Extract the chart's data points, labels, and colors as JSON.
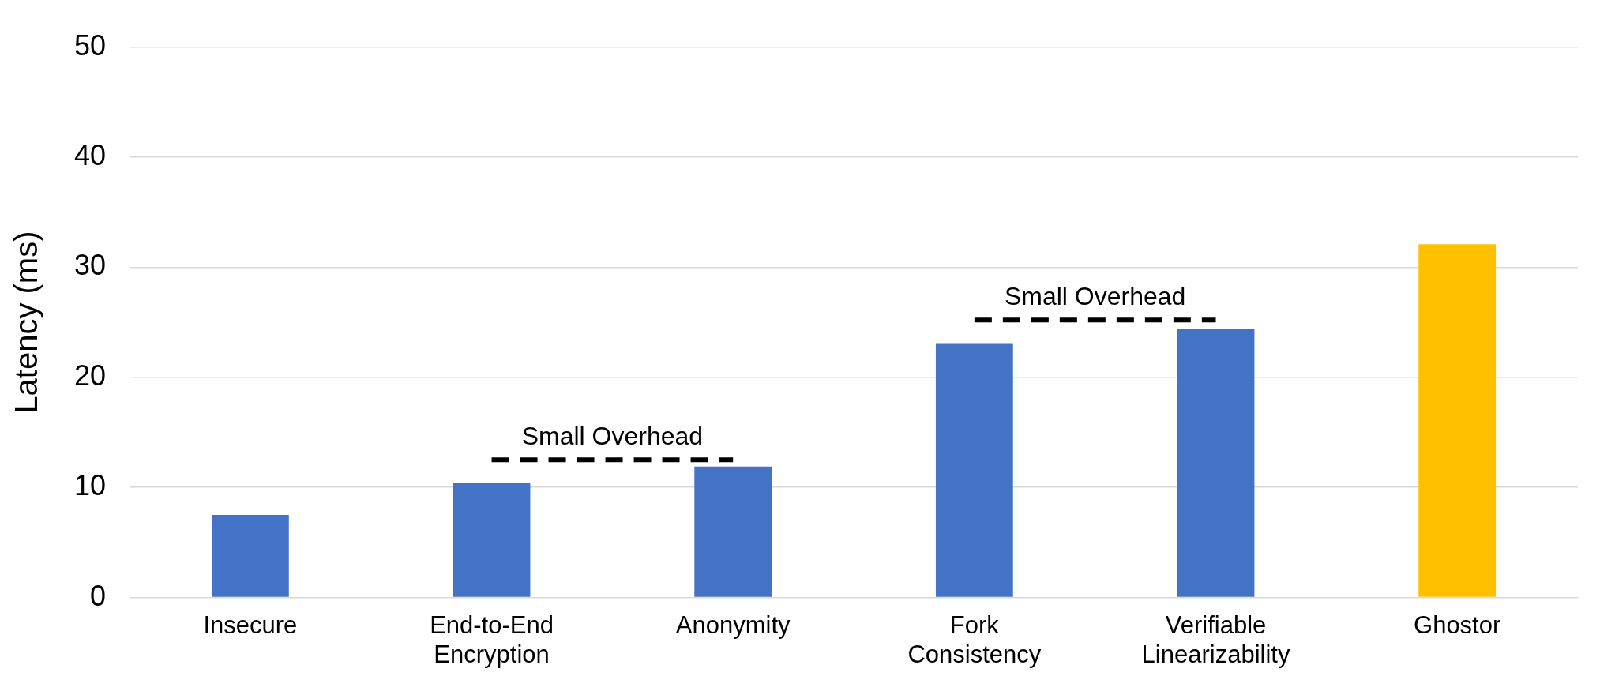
{
  "chart_data": {
    "type": "bar",
    "ylabel": "Latency (ms)",
    "categories": [
      "Insecure",
      "End-to-End\nEncryption",
      "Anonymity",
      "Fork\nConsistency",
      "Verifiable\nLinearizability",
      "Ghostor"
    ],
    "series": [
      {
        "values": [
          7.5,
          10.4,
          11.9,
          23.1,
          24.4,
          32.1
        ],
        "colors": [
          "#4472c4",
          "#4472c4",
          "#4472c4",
          "#4472c4",
          "#4472c4",
          "#ffc000"
        ]
      },
      {
        "type": "line",
        "values": [
          null,
          12.5,
          12.5,
          null,
          null,
          null
        ],
        "color": "#000000",
        "line_style": "dashed",
        "marker": "none"
      },
      {
        "type": "line",
        "values": [
          null,
          null,
          null,
          25.2,
          25.2,
          null
        ],
        "color": "#000000",
        "line_style": "dashed",
        "marker": "none"
      }
    ],
    "annotations": [
      "Small Overhead",
      "Small Overhead"
    ],
    "ylim": [
      0,
      50
    ],
    "yticks": [
      0,
      10,
      20,
      30,
      40,
      50
    ],
    "grid": "y",
    "legend": false
  }
}
